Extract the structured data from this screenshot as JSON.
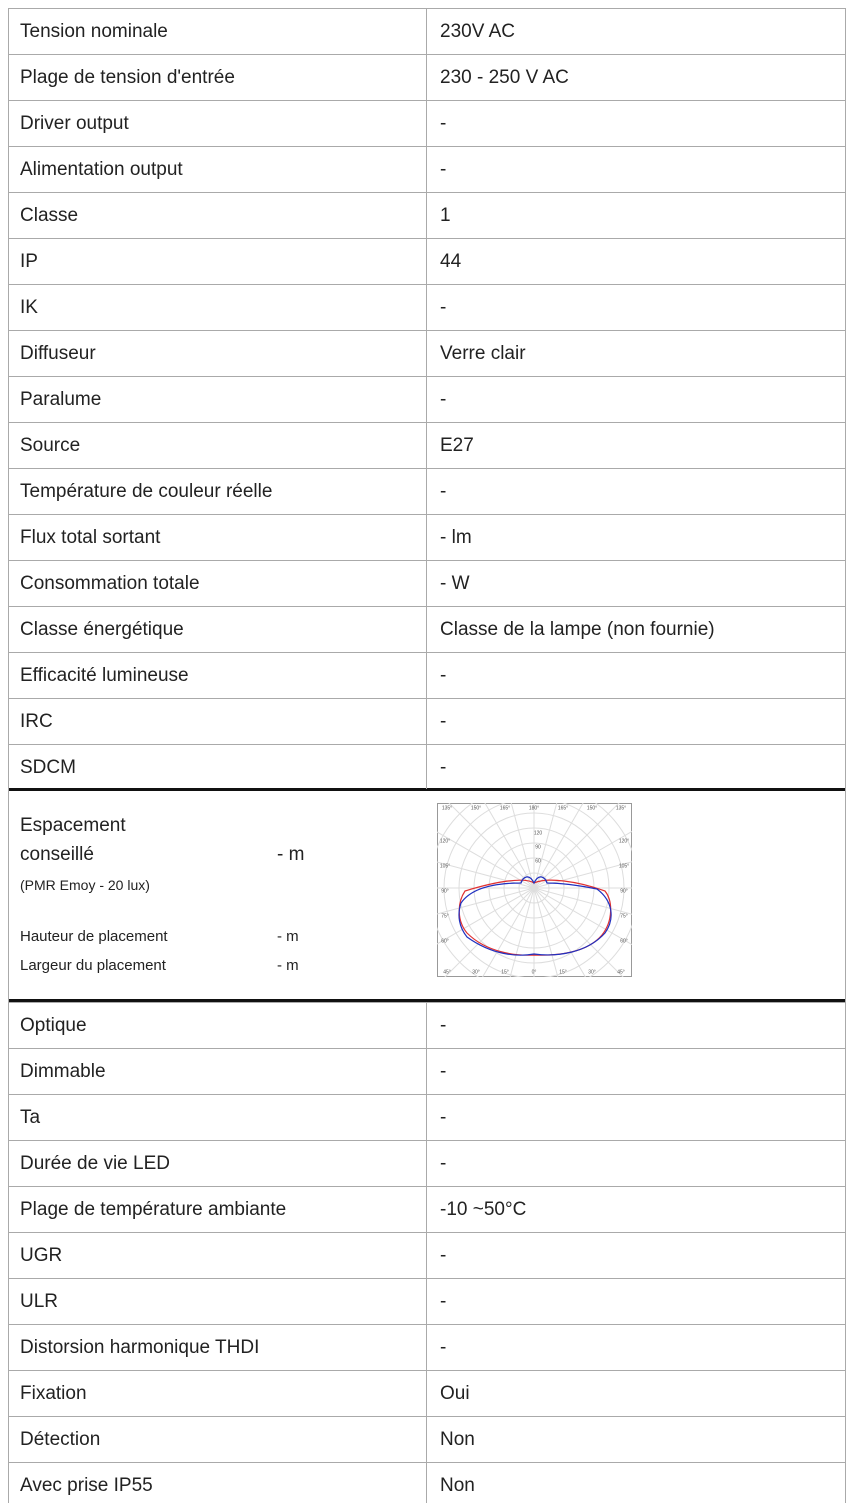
{
  "table": {
    "rows_before": [
      [
        "Tension nominale",
        "230V AC"
      ],
      [
        "Plage de tension d'entrée",
        "230 - 250 V AC"
      ],
      [
        "Driver output",
        "-"
      ],
      [
        "Alimentation output",
        "-"
      ],
      [
        "Classe",
        "1"
      ],
      [
        "IP",
        "44"
      ],
      [
        "IK",
        "-"
      ],
      [
        "Diffuseur",
        "Verre clair"
      ],
      [
        "Paralume",
        "-"
      ],
      [
        "Source",
        "E27"
      ],
      [
        "Température de couleur réelle",
        "-"
      ],
      [
        "Flux total sortant",
        "- lm"
      ],
      [
        "Consommation totale",
        "- W"
      ],
      [
        "Classe énergétique",
        "Classe de la lampe (non fournie)"
      ],
      [
        "Efficacité lumineuse",
        "-"
      ],
      [
        "IRC",
        "-"
      ],
      [
        "SDCM",
        "-"
      ]
    ],
    "spacing": {
      "line1": "Espacement",
      "line2": "conseillé",
      "value": "- m",
      "note": "(PMR Emoy - 20 lux)",
      "height_label": "Hauteur de placement",
      "height_value": "- m",
      "width_label": "Largeur du placement",
      "width_value": "- m"
    },
    "polar": {
      "top_labels": [
        "135°",
        "150°",
        "165°",
        "180°",
        "165°",
        "150°",
        "135°"
      ],
      "side_labels": [
        "120°",
        "105°",
        "90°",
        "75°",
        "60°"
      ],
      "bottom_labels": [
        "45°",
        "30°",
        "15°",
        "0°",
        "15°",
        "30°",
        "45°"
      ],
      "radial_labels": [
        "120",
        "90",
        "60"
      ]
    },
    "rows_after": [
      [
        "Optique",
        "-"
      ],
      [
        "Dimmable",
        "-"
      ],
      [
        "Ta",
        "-"
      ],
      [
        "Durée de vie LED",
        "-"
      ],
      [
        "Plage de température ambiante",
        "-10 ~50°C"
      ],
      [
        "UGR",
        "-"
      ],
      [
        "ULR",
        "-"
      ],
      [
        "Distorsion harmonique THDI",
        "-"
      ],
      [
        "Fixation",
        "Oui"
      ],
      [
        "Détection",
        "Non"
      ],
      [
        "Avec prise IP55",
        "Non"
      ]
    ]
  }
}
